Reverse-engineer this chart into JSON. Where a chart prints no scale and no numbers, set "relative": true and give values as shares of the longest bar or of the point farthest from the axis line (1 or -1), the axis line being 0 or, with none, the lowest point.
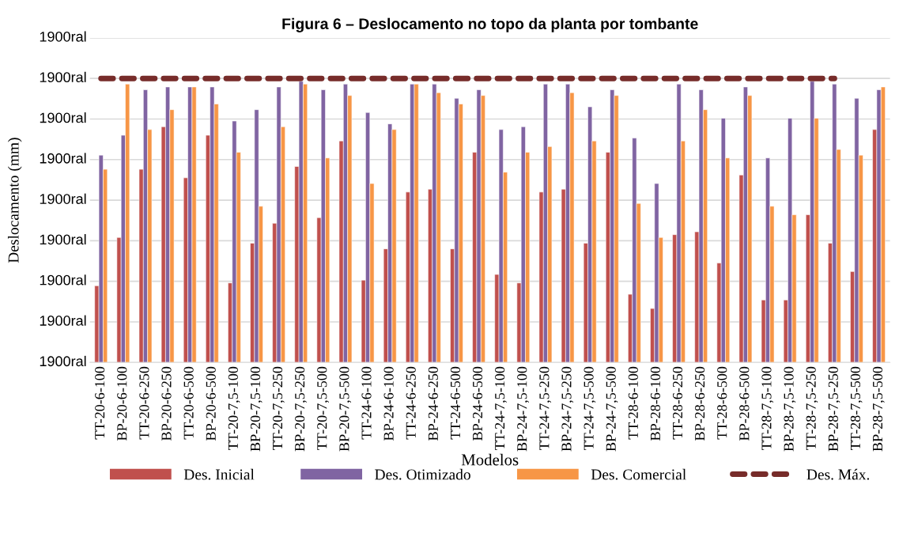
{
  "chart_data": {
    "type": "bar",
    "title": "Figura 6 – Deslocamento no topo da planta por tombante",
    "xlabel": "Modelos",
    "ylabel": "Deslocamento (mm)",
    "relative": true,
    "categories": [
      "TT-20-6-100",
      "BP-20-6-100",
      "TT-20-6-250",
      "BP-20-6-250",
      "TT-20-6-500",
      "BP-20-6-500",
      "TT-20-7,5-100",
      "BP-20-7,5-100",
      "TT-20-7,5-250",
      "BP-20-7,5-250",
      "TT-20-7,5-500",
      "BP-20-7,5-500",
      "TT-24-6-100",
      "BP-24-6-100",
      "TT-24-6-250",
      "BP-24-6-250",
      "TT-24-6-500",
      "BP-24-6-500",
      "TT-24-7,5-100",
      "BP-24-7,5-100",
      "TT-24-7,5-250",
      "BP-24-7,5-250",
      "TT-24-7,5-500",
      "BP-24-7,5-500",
      "TT-28-6-100",
      "BP-28-6-100",
      "TT-28-6-250",
      "BP-28-6-250",
      "TT-28-6-500",
      "BP-28-6-500",
      "TT-28-7,5-100",
      "BP-28-7,5-100",
      "TT-28-7,5-250",
      "BP-28-7,5-250",
      "TT-28-7,5-500",
      "BP-28-7,5-500"
    ],
    "annotations": [
      "1900ral",
      "1900ral",
      "1900ral",
      "1900ral",
      "1900ral",
      "1900ral",
      "1900ral",
      "1900ral",
      "1900ral"
    ],
    "grid": "y",
    "legend": "bottom",
    "series": [
      {
        "name": "Des. Inicial",
        "color": "#c0504d",
        "values": [
          0.27,
          0.44,
          0.68,
          0.83,
          0.65,
          0.8,
          0.28,
          0.42,
          0.49,
          0.69,
          0.51,
          0.78,
          0.29,
          0.4,
          0.6,
          0.61,
          0.4,
          0.74,
          0.31,
          0.28,
          0.6,
          0.61,
          0.42,
          0.74,
          0.24,
          0.19,
          0.45,
          0.46,
          0.35,
          0.66,
          0.22,
          0.22,
          0.52,
          0.42,
          0.32,
          0.82
        ]
      },
      {
        "name": "Des. Otimizado",
        "color": "#8064a2",
        "values": [
          0.73,
          0.8,
          0.96,
          0.97,
          0.97,
          0.97,
          0.85,
          0.89,
          0.97,
          0.99,
          0.96,
          0.98,
          0.88,
          0.84,
          0.98,
          0.98,
          0.93,
          0.96,
          0.82,
          0.83,
          0.98,
          0.98,
          0.9,
          0.96,
          0.79,
          0.63,
          0.98,
          0.96,
          0.86,
          0.97,
          0.72,
          0.86,
          0.99,
          0.98,
          0.93,
          0.96
        ]
      },
      {
        "name": "Des. Comercial",
        "color": "#f79646",
        "values": [
          0.68,
          0.98,
          0.82,
          0.89,
          0.97,
          0.91,
          0.74,
          0.55,
          0.83,
          0.98,
          0.72,
          0.94,
          0.63,
          0.82,
          0.98,
          0.95,
          0.91,
          0.94,
          0.67,
          0.74,
          0.76,
          0.95,
          0.78,
          0.94,
          0.56,
          0.44,
          0.78,
          0.89,
          0.72,
          0.94,
          0.55,
          0.52,
          0.86,
          0.75,
          0.73,
          0.97
        ]
      },
      {
        "name": "Des. Máx.",
        "type": "line",
        "line_style": "dashed",
        "color": "#772c2a",
        "values": [
          1,
          1,
          1,
          1,
          1,
          1,
          1,
          1,
          1,
          1,
          1,
          1,
          1,
          1,
          1,
          1,
          1,
          1,
          1,
          1,
          1,
          1,
          1,
          1,
          1,
          1,
          1,
          1,
          1,
          1,
          1,
          1,
          1,
          1,
          null,
          null
        ]
      }
    ]
  }
}
